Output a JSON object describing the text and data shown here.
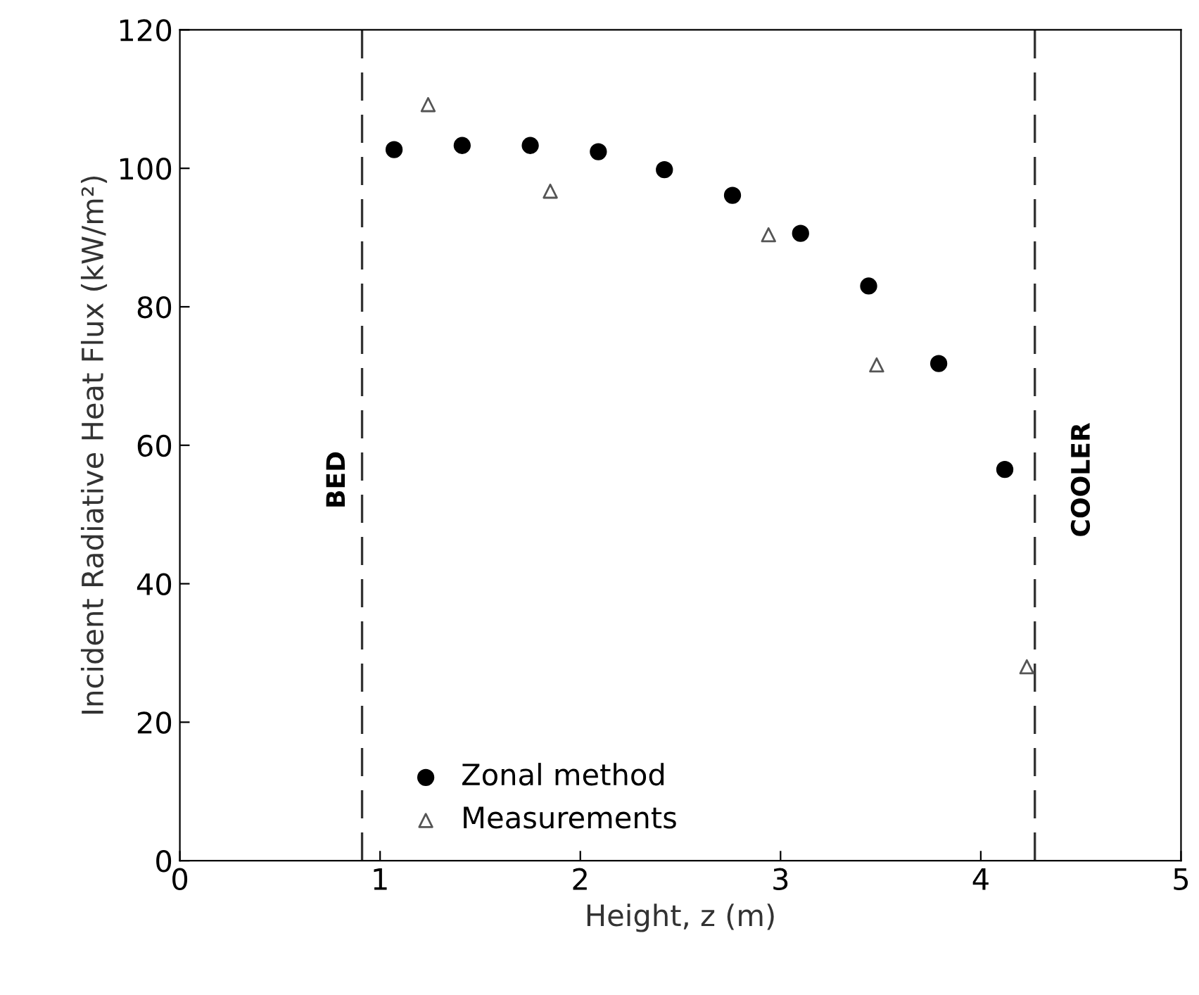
{
  "chart_data": {
    "type": "scatter",
    "xlabel": "Height, z (m)",
    "ylabel": "Incident Radiative Heat Flux (kW/m²)",
    "xlim": [
      0,
      5
    ],
    "ylim": [
      0,
      120
    ],
    "xticks": [
      0,
      1,
      2,
      3,
      4,
      5
    ],
    "yticks": [
      0,
      20,
      40,
      60,
      80,
      100,
      120
    ],
    "grid": false,
    "legend": "bottom left",
    "series": [
      {
        "name": "Zonal method",
        "color": "#000000",
        "marker": "circle",
        "x": [
          1.07,
          1.41,
          1.75,
          2.09,
          2.42,
          2.76,
          3.1,
          3.44,
          3.79,
          4.12
        ],
        "values": [
          102.7,
          103.3,
          103.3,
          102.4,
          99.8,
          96.1,
          90.6,
          83.0,
          71.8,
          56.5
        ]
      },
      {
        "name": "Measurements",
        "color": "#555555",
        "marker": "triangle",
        "x": [
          1.24,
          1.85,
          2.94,
          3.48,
          4.23
        ],
        "values": [
          109.2,
          96.7,
          90.4,
          71.6,
          28.0
        ]
      }
    ],
    "ref_lines": [
      {
        "axis": "x",
        "value": 0.91,
        "label": "BED",
        "color": "#333333",
        "line_style": "dashed"
      },
      {
        "axis": "x",
        "value": 4.27,
        "label": "COOLER",
        "color": "#333333",
        "line_style": "dashed"
      }
    ]
  }
}
